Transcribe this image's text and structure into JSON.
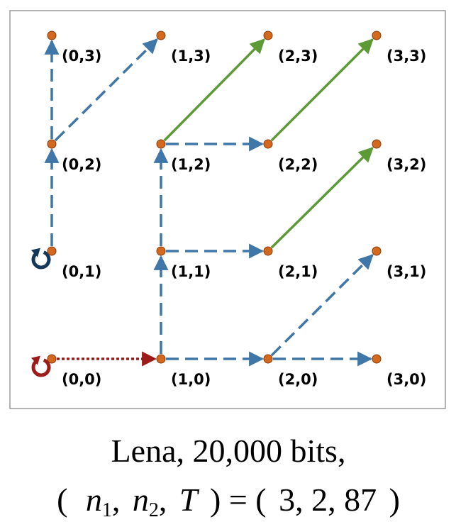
{
  "colors": {
    "node": "#d2691e",
    "node_outline": "#8a3a0e",
    "dashed_edge": "#3f77a8",
    "solid_edge": "#5c9a35",
    "dotted_edge": "#9c1b1b",
    "loop_dark": "#14385a",
    "loop_red": "#9c1b1b",
    "frame": "#9a9a9a"
  },
  "nodes": [
    {
      "id": "0,0",
      "label": "(0,0)"
    },
    {
      "id": "1,0",
      "label": "(1,0)"
    },
    {
      "id": "2,0",
      "label": "(2,0)"
    },
    {
      "id": "3,0",
      "label": "(3,0)"
    },
    {
      "id": "0,1",
      "label": "(0,1)"
    },
    {
      "id": "1,1",
      "label": "(1,1)"
    },
    {
      "id": "2,1",
      "label": "(2,1)"
    },
    {
      "id": "3,1",
      "label": "(3,1)"
    },
    {
      "id": "0,2",
      "label": "(0,2)"
    },
    {
      "id": "1,2",
      "label": "(1,2)"
    },
    {
      "id": "2,2",
      "label": "(2,2)"
    },
    {
      "id": "3,2",
      "label": "(3,2)"
    },
    {
      "id": "0,3",
      "label": "(0,3)"
    },
    {
      "id": "1,3",
      "label": "(1,3)"
    },
    {
      "id": "2,3",
      "label": "(2,3)"
    },
    {
      "id": "3,3",
      "label": "(3,3)"
    }
  ],
  "edges": [
    {
      "from": "0,0",
      "to": "1,0",
      "style": "dotted"
    },
    {
      "from": "1,0",
      "to": "2,0",
      "style": "dashed"
    },
    {
      "from": "2,0",
      "to": "3,0",
      "style": "dashed"
    },
    {
      "from": "1,0",
      "to": "1,1",
      "style": "dashed"
    },
    {
      "from": "2,0",
      "to": "3,1",
      "style": "dashed"
    },
    {
      "from": "1,1",
      "to": "2,1",
      "style": "dashed"
    },
    {
      "from": "1,1",
      "to": "1,2",
      "style": "dashed"
    },
    {
      "from": "2,1",
      "to": "3,2",
      "style": "solid"
    },
    {
      "from": "0,1",
      "to": "0,2",
      "style": "dashed"
    },
    {
      "from": "0,2",
      "to": "0,3",
      "style": "dashed"
    },
    {
      "from": "0,2",
      "to": "1,3",
      "style": "dashed"
    },
    {
      "from": "1,2",
      "to": "2,2",
      "style": "dashed"
    },
    {
      "from": "1,2",
      "to": "2,3",
      "style": "solid"
    },
    {
      "from": "2,2",
      "to": "3,3",
      "style": "solid"
    }
  ],
  "loops": [
    {
      "node": "0,1",
      "color_key": "loop_dark"
    },
    {
      "node": "0,0",
      "color_key": "loop_red"
    }
  ],
  "caption": {
    "line1": "Lena, 20,000 bits,",
    "open": "(",
    "n1_var": "n",
    "n1_sub": "1",
    "comma1": ",",
    "n2_var": "n",
    "n2_sub": "2",
    "comma2": ",",
    "t_var": "T",
    "close_eq": ") = (",
    "values": "3, 2, 87",
    "close": ")"
  }
}
